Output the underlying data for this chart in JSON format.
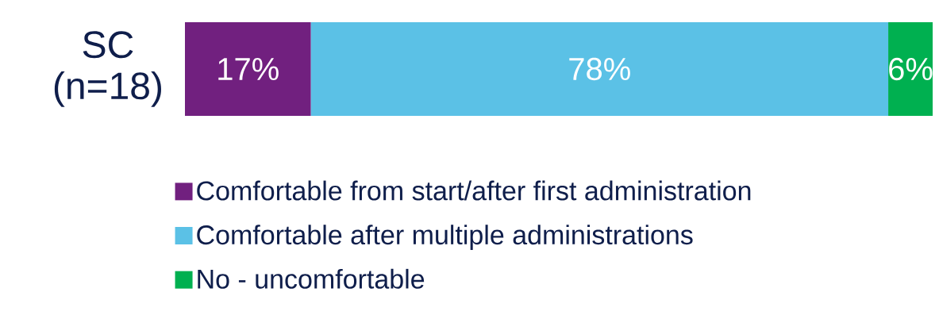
{
  "chart_data": {
    "type": "bar",
    "orientation": "horizontal",
    "stacked": true,
    "categories": [
      "SC (n=18)"
    ],
    "series": [
      {
        "name": "Comfortable from start/after first administration",
        "color": "#71207f",
        "values": [
          17
        ],
        "value_labels": [
          "17%"
        ]
      },
      {
        "name": "Comfortable after multiple administrations",
        "color": "#5bc1e6",
        "values": [
          78
        ],
        "value_labels": [
          "78%"
        ]
      },
      {
        "name": "No - uncomfortable",
        "color": "#00b050",
        "values": [
          6
        ],
        "value_labels": [
          "6%"
        ]
      }
    ],
    "legend": "bottom"
  }
}
